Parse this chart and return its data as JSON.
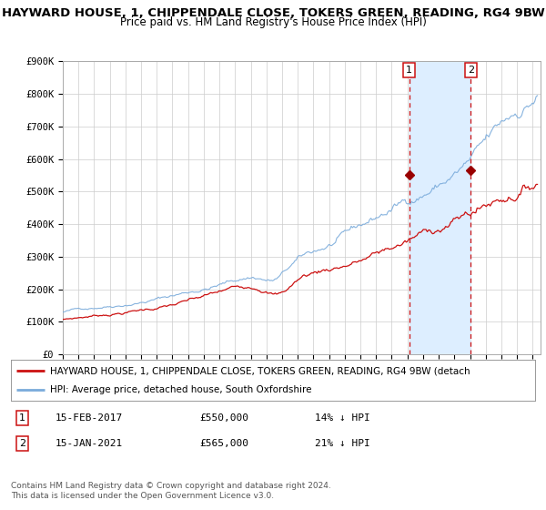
{
  "title": "HAYWARD HOUSE, 1, CHIPPENDALE CLOSE, TOKERS GREEN, READING, RG4 9BW",
  "subtitle": "Price paid vs. HM Land Registry's House Price Index (HPI)",
  "ylim": [
    0,
    900000
  ],
  "yticks": [
    0,
    100000,
    200000,
    300000,
    400000,
    500000,
    600000,
    700000,
    800000,
    900000
  ],
  "ytick_labels": [
    "£0",
    "£100K",
    "£200K",
    "£300K",
    "£400K",
    "£500K",
    "£600K",
    "£700K",
    "£800K",
    "£900K"
  ],
  "xlim_start": 1995.0,
  "xlim_end": 2025.5,
  "hpi_color": "#7aabdb",
  "hpi_shade_color": "#ddeeff",
  "price_color": "#cc1111",
  "marker_color": "#990000",
  "vline_color": "#cc1111",
  "sale1_x": 2017.12,
  "sale1_y": 550000,
  "sale2_x": 2021.04,
  "sale2_y": 565000,
  "legend_line1": "HAYWARD HOUSE, 1, CHIPPENDALE CLOSE, TOKERS GREEN, READING, RG4 9BW (detach",
  "legend_line2": "HPI: Average price, detached house, South Oxfordshire",
  "annotation1_date": "15-FEB-2017",
  "annotation1_price": "£550,000",
  "annotation1_hpi": "14% ↓ HPI",
  "annotation2_date": "15-JAN-2021",
  "annotation2_price": "£565,000",
  "annotation2_hpi": "21% ↓ HPI",
  "footer": "Contains HM Land Registry data © Crown copyright and database right 2024.\nThis data is licensed under the Open Government Licence v3.0.",
  "background_color": "#ffffff",
  "grid_color": "#cccccc",
  "title_fontsize": 9.5,
  "subtitle_fontsize": 8.5,
  "tick_fontsize": 7.5,
  "legend_fontsize": 7.5,
  "annotation_fontsize": 8,
  "footer_fontsize": 6.5
}
